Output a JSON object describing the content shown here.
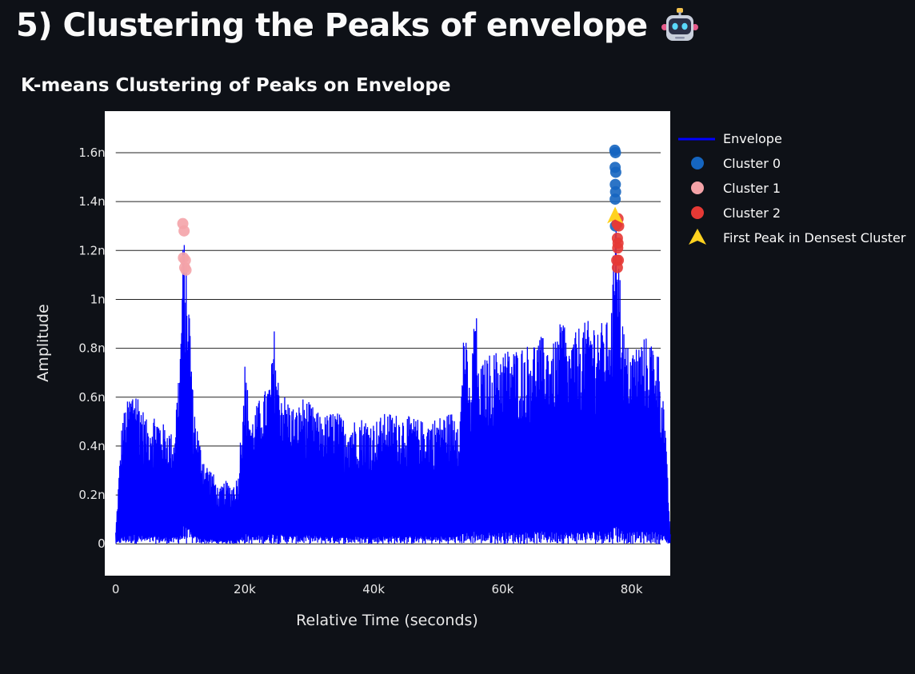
{
  "page": {
    "title": "5) Clustering the Peaks of envelope",
    "title_icon": "robot-icon"
  },
  "chart_data": {
    "type": "line",
    "title": "K-means Clustering of Peaks on Envelope",
    "xlabel": "Relative Time (seconds)",
    "ylabel": "Amplitude",
    "xlim": [
      -1700,
      86000
    ],
    "ylim": [
      -0.13,
      1.77
    ],
    "xticks": [
      {
        "value": 0,
        "label": "0"
      },
      {
        "value": 20000,
        "label": "20k"
      },
      {
        "value": 40000,
        "label": "40k"
      },
      {
        "value": 60000,
        "label": "60k"
      },
      {
        "value": 80000,
        "label": "80k"
      }
    ],
    "yticks": [
      {
        "value": 0,
        "label": "0"
      },
      {
        "value": 0.2,
        "label": "0.2n"
      },
      {
        "value": 0.4,
        "label": "0.4n"
      },
      {
        "value": 0.6,
        "label": "0.6n"
      },
      {
        "value": 0.8,
        "label": "0.8n"
      },
      {
        "value": 1.0,
        "label": "1n"
      },
      {
        "value": 1.2,
        "label": "1.2n"
      },
      {
        "value": 1.4,
        "label": "1.4n"
      },
      {
        "value": 1.6,
        "label": "1.6n"
      }
    ],
    "grid": true,
    "legend_position": "right",
    "series": [
      {
        "name": "Envelope",
        "kind": "line",
        "color": "#0000ff",
        "x": [
          0,
          1000,
          2000,
          3000,
          4000,
          5000,
          6000,
          7000,
          8000,
          9000,
          10000,
          10500,
          11000,
          11500,
          12000,
          13000,
          14000,
          15000,
          16000,
          17000,
          18000,
          19000,
          20000,
          21000,
          22000,
          23000,
          24000,
          24700,
          25000,
          26000,
          27000,
          28000,
          29000,
          30000,
          32000,
          34000,
          36000,
          38000,
          40000,
          42000,
          44000,
          46000,
          48000,
          50000,
          52000,
          53500,
          54000,
          55000,
          55800,
          56200,
          57000,
          58000,
          60000,
          62000,
          64000,
          66000,
          68000,
          69500,
          70000,
          72000,
          74000,
          76000,
          77000,
          77600,
          78000,
          78500,
          79000,
          80000,
          82000,
          84000,
          85000,
          86000
        ],
        "y": [
          0.05,
          0.52,
          0.6,
          0.66,
          0.57,
          0.49,
          0.54,
          0.5,
          0.48,
          0.44,
          0.8,
          1.3,
          1.12,
          0.95,
          0.6,
          0.42,
          0.33,
          0.3,
          0.22,
          0.26,
          0.24,
          0.28,
          0.75,
          0.5,
          0.58,
          0.62,
          0.68,
          0.92,
          0.7,
          0.62,
          0.58,
          0.55,
          0.6,
          0.58,
          0.52,
          0.55,
          0.5,
          0.52,
          0.5,
          0.54,
          0.53,
          0.52,
          0.5,
          0.52,
          0.54,
          0.56,
          0.95,
          0.6,
          1.07,
          0.7,
          0.75,
          0.78,
          0.8,
          0.8,
          0.82,
          0.85,
          0.82,
          0.95,
          0.8,
          0.9,
          0.92,
          0.9,
          0.98,
          1.6,
          1.2,
          0.98,
          0.82,
          0.8,
          0.85,
          0.82,
          0.6,
          0.05
        ]
      },
      {
        "name": "Cluster 0",
        "kind": "markers",
        "color": "#1565c0",
        "x": [
          77400,
          77500,
          77450,
          77550,
          77480,
          77520,
          77460,
          77500
        ],
        "y": [
          1.61,
          1.6,
          1.54,
          1.52,
          1.47,
          1.44,
          1.41,
          1.3
        ]
      },
      {
        "name": "Cluster 1",
        "kind": "markers",
        "color": "#f4a3a8",
        "x": [
          10400,
          10600,
          10500,
          10800,
          10700,
          10900
        ],
        "y": [
          1.31,
          1.28,
          1.17,
          1.16,
          1.13,
          1.12
        ]
      },
      {
        "name": "Cluster 2",
        "kind": "markers",
        "color": "#e53935",
        "x": [
          77900,
          77750,
          78000,
          77800,
          77900,
          77850,
          77950,
          77700,
          77800
        ],
        "y": [
          1.33,
          1.31,
          1.3,
          1.25,
          1.23,
          1.21,
          1.16,
          1.16,
          1.13
        ]
      },
      {
        "name": "First Peak in Densest Cluster",
        "kind": "marker-star",
        "color": "#ffd21f",
        "x": [
          77450
        ],
        "y": [
          1.34
        ]
      }
    ]
  }
}
